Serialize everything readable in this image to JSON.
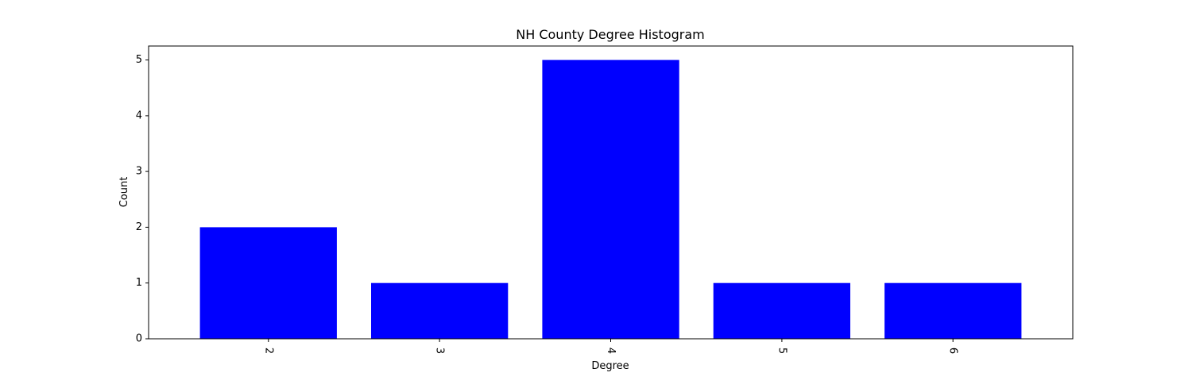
{
  "chart_data": {
    "type": "bar",
    "title": "NH County Degree Histogram",
    "xlabel": "Degree",
    "ylabel": "Count",
    "categories": [
      "2",
      "3",
      "4",
      "5",
      "6"
    ],
    "values": [
      2,
      1,
      5,
      1,
      1
    ],
    "ylim": [
      0,
      5.25
    ],
    "yticks": [
      0,
      1,
      2,
      3,
      4,
      5
    ],
    "x_tick_rotation_deg": 270,
    "grid": false,
    "bar_color": "#0000ff"
  }
}
